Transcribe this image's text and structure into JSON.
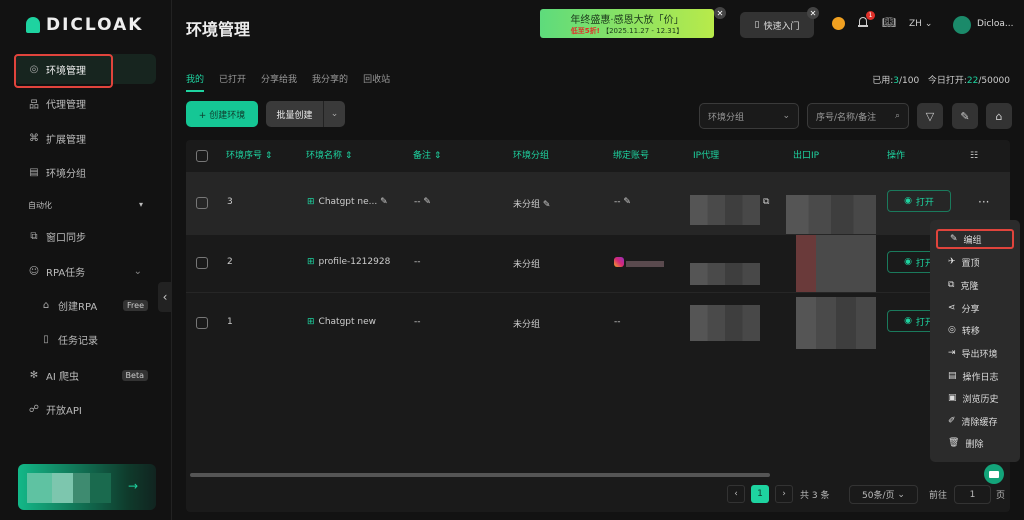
{
  "brand": {
    "name": "DICLOAK",
    "accent": "#1ed3a0"
  },
  "sidebar": {
    "items": [
      {
        "label": "环境管理",
        "icon": "chrome-icon"
      },
      {
        "label": "代理管理",
        "icon": "network-icon"
      },
      {
        "label": "扩展管理",
        "icon": "extension-icon"
      },
      {
        "label": "环境分组",
        "icon": "group-icon"
      }
    ],
    "section": "自动化",
    "auto_items": [
      {
        "label": "窗口同步",
        "icon": "sync-icon"
      },
      {
        "label": "RPA任务",
        "icon": "robot-icon"
      },
      {
        "label": "创建RPA",
        "icon": "store-icon",
        "badge": "Free"
      },
      {
        "label": "任务记录",
        "icon": "document-icon"
      },
      {
        "label": "AI 爬虫",
        "icon": "bug-icon",
        "badge": "Beta"
      },
      {
        "label": "开放API",
        "icon": "link-icon"
      }
    ]
  },
  "header": {
    "title": "环境管理",
    "banner": {
      "line1": "年终盛惠·感恩大放「价」",
      "discount": "低至5折!",
      "dates": "【2025.11.27 - 12.31】"
    },
    "quick_start": "快速入门",
    "notif_count": "1",
    "lang": "ZH",
    "user": "Dicloa..."
  },
  "tabs": [
    "我的",
    "已打开",
    "分享给我",
    "我分享的",
    "回收站"
  ],
  "usage": {
    "used_label": "已用:",
    "used": "3",
    "used_total": "/100",
    "today_label": "今日打开:",
    "today": "22",
    "today_total": "/50000"
  },
  "toolbar": {
    "create": "+ 创建环境",
    "batch": "批量创建",
    "group_placeholder": "环境分组",
    "search_placeholder": "序号/名称/备注"
  },
  "table": {
    "headers": [
      "环境序号",
      "环境名称",
      "备注",
      "环境分组",
      "绑定账号",
      "IP代理",
      "出口IP",
      "操作"
    ],
    "rows": [
      {
        "seq": "3",
        "name": "Chatgpt ne...",
        "note": "--",
        "group": "未分组",
        "account": "--",
        "action": "打开"
      },
      {
        "seq": "2",
        "name": "profile-1212928",
        "note": "--",
        "group": "未分组",
        "account": "",
        "action": "打开"
      },
      {
        "seq": "1",
        "name": "Chatgpt new",
        "note": "--",
        "group": "未分组",
        "account": "--",
        "action": "打开"
      }
    ]
  },
  "context_menu": [
    "编组",
    "置顶",
    "克隆",
    "分享",
    "转移",
    "导出环境",
    "操作日志",
    "浏览历史",
    "清除缓存",
    "删除"
  ],
  "pagination": {
    "page": "1",
    "total": "共 3 条",
    "page_size": "50条/页",
    "goto_label": "前往",
    "goto_value": "1",
    "page_suffix": "页"
  }
}
